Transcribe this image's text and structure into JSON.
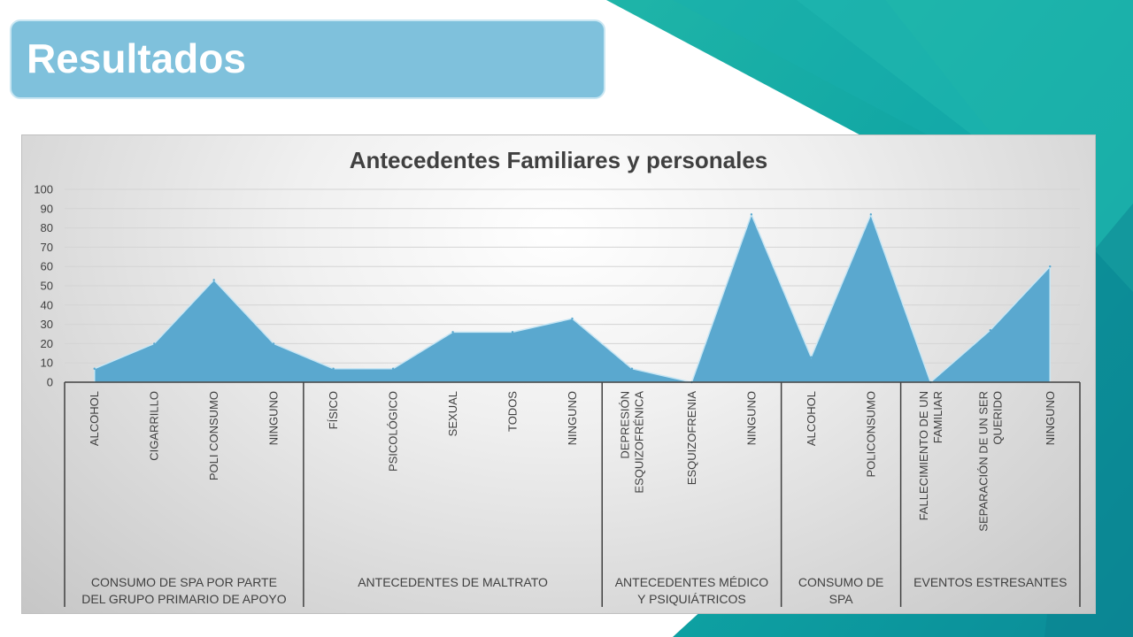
{
  "slide": {
    "title": "Resultados"
  },
  "colors": {
    "banner": "#7fc1dc",
    "area_fill": "#5aa8cf",
    "area_stroke": "#c8e6f4",
    "teal_dark": "#0c8f9a",
    "teal_light": "#17b2a8"
  },
  "chart_data": {
    "type": "area",
    "title": "Antecedentes Familiares y personales",
    "ylim": [
      0,
      100
    ],
    "y_ticks": [
      0,
      10,
      20,
      30,
      40,
      50,
      60,
      70,
      80,
      90,
      100
    ],
    "grid": true,
    "legend": "none",
    "categories": [
      "ALCOHOL",
      "CIGARRILLO",
      "POLI CONSUMO",
      "NINGUNO",
      "FÍSICO",
      "PSICOLÓGICO",
      "SEXUAL",
      "TODOS",
      "NINGUNO",
      "DEPRESIÓN ESQUIZOFRÉNICA",
      "ESQUIZOFRENIA",
      "NINGUNO",
      "ALCOHOL",
      "POLICONSUMO",
      "FALLECIMIENTO DE UN FAMILIAR",
      "SEPARACIÓN DE UN SER QUERIDO",
      "NINGUNO"
    ],
    "category_lines": [
      [
        "ALCOHOL"
      ],
      [
        "CIGARRILLO"
      ],
      [
        "POLI CONSUMO"
      ],
      [
        "NINGUNO"
      ],
      [
        "FÍSICO"
      ],
      [
        "PSICOLÓGICO"
      ],
      [
        "SEXUAL"
      ],
      [
        "TODOS"
      ],
      [
        "NINGUNO"
      ],
      [
        "DEPRESIÓN",
        "ESQUIZOFRÉNICA"
      ],
      [
        "ESQUIZOFRENIA"
      ],
      [
        "NINGUNO"
      ],
      [
        "ALCOHOL"
      ],
      [
        "POLICONSUMO"
      ],
      [
        "FALLECIMIENTO DE UN",
        "FAMILIAR"
      ],
      [
        "SEPARACIÓN DE UN SER",
        "QUERIDO"
      ],
      [
        "NINGUNO"
      ]
    ],
    "groups": [
      {
        "lines": [
          "CONSUMO DE SPA POR PARTE",
          "DEL GRUPO PRIMARIO DE APOYO"
        ],
        "count": 4
      },
      {
        "lines": [
          "ANTECEDENTES DE MALTRATO"
        ],
        "count": 5
      },
      {
        "lines": [
          "ANTECEDENTES MÉDICO",
          "Y PSIQUIÁTRICOS"
        ],
        "count": 3
      },
      {
        "lines": [
          "CONSUMO DE",
          "SPA"
        ],
        "count": 2
      },
      {
        "lines": [
          "EVENTOS ESTRESANTES"
        ],
        "count": 3
      }
    ],
    "series": [
      {
        "values": [
          7,
          20,
          53,
          20,
          7,
          7,
          26,
          26,
          33,
          7,
          0,
          87,
          13,
          87,
          0,
          27,
          60
        ]
      }
    ]
  }
}
